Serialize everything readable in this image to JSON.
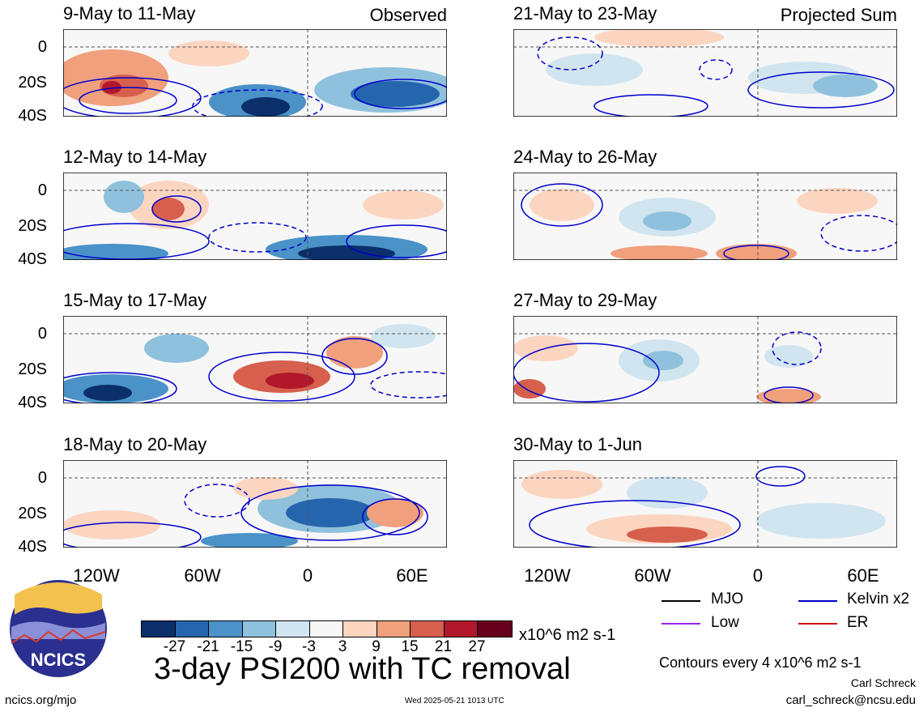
{
  "panels_left": [
    {
      "title": "9-May to 11-May",
      "label": "Observed"
    },
    {
      "title": "12-May to 14-May",
      "label": ""
    },
    {
      "title": "15-May to 17-May",
      "label": ""
    },
    {
      "title": "18-May to 20-May",
      "label": ""
    }
  ],
  "panels_right": [
    {
      "title": "21-May to 23-May",
      "label": "Projected Sum"
    },
    {
      "title": "24-May to 26-May",
      "label": ""
    },
    {
      "title": "27-May to 29-May",
      "label": ""
    },
    {
      "title": "30-May to 1-Jun",
      "label": ""
    }
  ],
  "lat_labels": [
    "0",
    "20S",
    "40S"
  ],
  "lon_labels": [
    "120W",
    "60W",
    "0",
    "60E"
  ],
  "colorbar": {
    "ticks": [
      "-27",
      "-21",
      "-15",
      "-9",
      "-3",
      "3",
      "9",
      "15",
      "21",
      "27"
    ],
    "colors": [
      "#0b2f6b",
      "#2565ae",
      "#4a92c8",
      "#8fc1dd",
      "#d1e5f0",
      "#f7f7f7",
      "#fcd5c0",
      "#f0a07c",
      "#d6604d",
      "#b2182b",
      "#67001f"
    ],
    "units": "x10^6 m2 s-1"
  },
  "title": "3-day PSI200 with TC removal",
  "legend": [
    {
      "name": "MJO",
      "color": "#000000"
    },
    {
      "name": "Kelvin x2",
      "color": "#0000cc"
    },
    {
      "name": "Low",
      "color": "#a020f0"
    },
    {
      "name": "ER",
      "color": "#cc0000"
    }
  ],
  "contour_note": "Contours every 4 x10^6 m2 s-1",
  "author": "Carl Schreck",
  "email": "carl_schreck@ncsu.edu",
  "site": "ncics.org/mjo",
  "timestamp": "Wed 2025-05-21 1013 UTC",
  "logo_text": "NCICS"
}
